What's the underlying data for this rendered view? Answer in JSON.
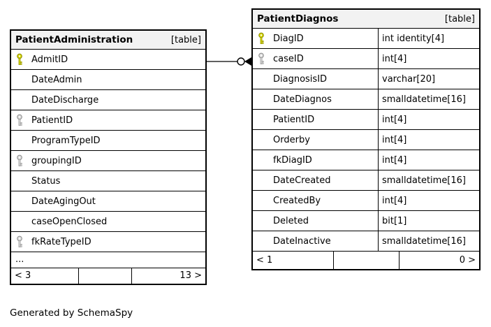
{
  "caption": "Generated by SchemaSpy",
  "colors": {
    "primary_key_fill": "#d6d600",
    "primary_key_outline": "#8a8a00",
    "foreign_key_fill": "#d9d9d9",
    "foreign_key_outline": "#8c8c8c",
    "header_bg": "#f2f2f2",
    "border": "#000000",
    "background": "#ffffff"
  },
  "tables": [
    {
      "title": "PatientAdministration",
      "tag": "[table]",
      "columns": [
        {
          "name": "AdmitID",
          "key": "primary"
        },
        {
          "name": "DateAdmin",
          "key": null
        },
        {
          "name": "DateDischarge",
          "key": null
        },
        {
          "name": "PatientID",
          "key": "foreign"
        },
        {
          "name": "ProgramTypeID",
          "key": null
        },
        {
          "name": "groupingID",
          "key": "foreign"
        },
        {
          "name": "Status",
          "key": null
        },
        {
          "name": "DateAgingOut",
          "key": null
        },
        {
          "name": "caseOpenClosed",
          "key": null
        },
        {
          "name": "fkRateTypeID",
          "key": "foreign"
        }
      ],
      "ellipsis": "...",
      "footer": {
        "left": "< 3",
        "middle": "",
        "right": "13 >"
      }
    },
    {
      "title": "PatientDiagnos",
      "tag": "[table]",
      "columns": [
        {
          "name": "DiagID",
          "type": "int identity[4]",
          "key": "primary"
        },
        {
          "name": "caseID",
          "type": "int[4]",
          "key": "foreign"
        },
        {
          "name": "DiagnosisID",
          "type": "varchar[20]",
          "key": null
        },
        {
          "name": "DateDiagnos",
          "type": "smalldatetime[16]",
          "key": null
        },
        {
          "name": "PatientID",
          "type": "int[4]",
          "key": null
        },
        {
          "name": "Orderby",
          "type": "int[4]",
          "key": null
        },
        {
          "name": "fkDiagID",
          "type": "int[4]",
          "key": null
        },
        {
          "name": "DateCreated",
          "type": "smalldatetime[16]",
          "key": null
        },
        {
          "name": "CreatedBy",
          "type": "int[4]",
          "key": null
        },
        {
          "name": "Deleted",
          "type": "bit[1]",
          "key": null
        },
        {
          "name": "DateInactive",
          "type": "smalldatetime[16]",
          "key": null
        }
      ],
      "footer": {
        "left": "< 1",
        "middle": "",
        "right": "0 >"
      }
    }
  ],
  "relationship": {
    "from_table": "PatientAdministration",
    "from_column": "AdmitID",
    "to_table": "PatientDiagnos",
    "to_column": "caseID"
  }
}
